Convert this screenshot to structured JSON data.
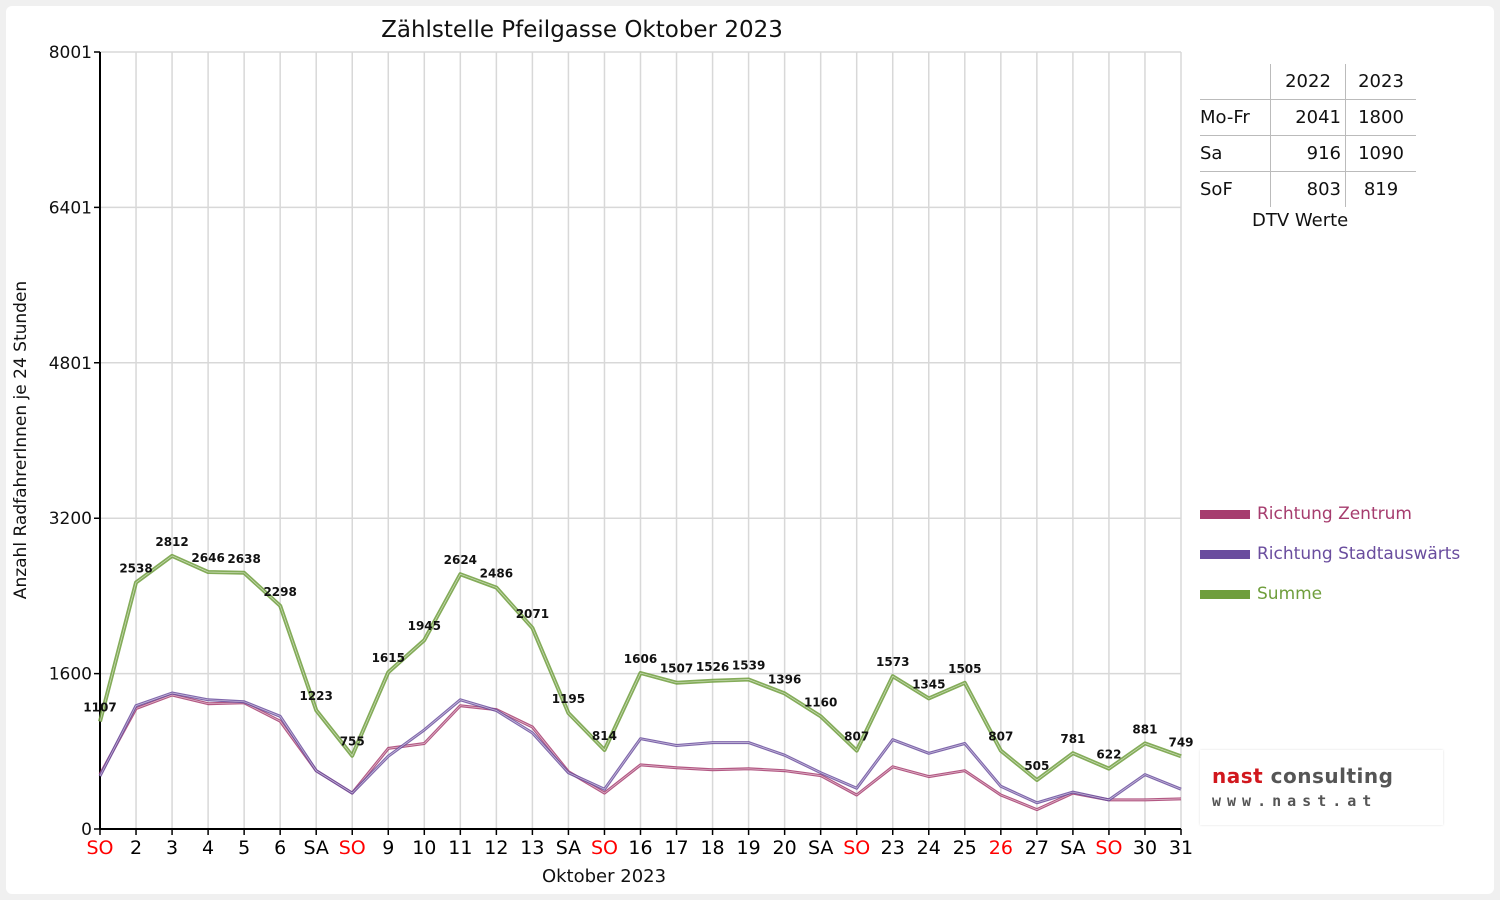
{
  "chart_data": {
    "type": "line",
    "title": "Zählstelle Pfeilgasse Oktober 2023",
    "xlabel": "Oktober 2023",
    "ylabel": "Anzahl RadfahrerInnen je 24 Stunden",
    "ylim": [
      0,
      8001
    ],
    "yticks": [
      "0",
      "1600",
      "3200",
      "4801",
      "6401",
      "8001"
    ],
    "ytick_values": [
      0,
      1600,
      3200,
      4801,
      6401,
      8001
    ],
    "categories": [
      "SO",
      "2",
      "3",
      "4",
      "5",
      "6",
      "SA",
      "SO",
      "9",
      "10",
      "11",
      "12",
      "13",
      "SA",
      "SO",
      "16",
      "17",
      "18",
      "19",
      "20",
      "SA",
      "SO",
      "23",
      "24",
      "25",
      "26",
      "27",
      "SA",
      "SO",
      "30",
      "31"
    ],
    "category_colors": [
      "#ff0000",
      "#000000",
      "#000000",
      "#000000",
      "#000000",
      "#000000",
      "#000000",
      "#ff0000",
      "#000000",
      "#000000",
      "#000000",
      "#000000",
      "#000000",
      "#000000",
      "#ff0000",
      "#000000",
      "#000000",
      "#000000",
      "#000000",
      "#000000",
      "#000000",
      "#ff0000",
      "#000000",
      "#000000",
      "#000000",
      "#ff0000",
      "#000000",
      "#000000",
      "#ff0000",
      "#000000",
      "#000000"
    ],
    "grid": true,
    "legend_position": "right",
    "series": [
      {
        "name": "Richtung Zentrum",
        "color": "#a63c6e",
        "values": [
          560,
          1240,
          1380,
          1290,
          1300,
          1110,
          600,
          370,
          830,
          880,
          1270,
          1230,
          1050,
          590,
          370,
          660,
          630,
          610,
          620,
          600,
          550,
          350,
          640,
          540,
          600,
          350,
          200,
          370,
          300,
          300,
          310
        ]
      },
      {
        "name": "Richtung Stadtauswärts",
        "color": "#6a4d9e",
        "values": [
          545,
          1270,
          1400,
          1330,
          1310,
          1160,
          600,
          370,
          750,
          1020,
          1330,
          1220,
          990,
          580,
          410,
          930,
          860,
          890,
          890,
          760,
          580,
          420,
          920,
          780,
          880,
          440,
          270,
          380,
          300,
          560,
          410
        ]
      },
      {
        "name": "Summe",
        "color": "#6f9e3c",
        "values": [
          1107,
          2538,
          2812,
          2646,
          2638,
          2298,
          1223,
          755,
          1615,
          1945,
          2624,
          2486,
          2071,
          1195,
          814,
          1606,
          1507,
          1526,
          1539,
          1396,
          1160,
          807,
          1573,
          1345,
          1505,
          807,
          505,
          781,
          622,
          881,
          749
        ]
      }
    ],
    "data_labels": [
      "1107",
      "2538",
      "2812",
      "2646",
      "2638",
      "2298",
      "1223",
      "755",
      "1615",
      "1945",
      "2624",
      "2486",
      "2071",
      "1195",
      "814",
      "1606",
      "1507",
      "1526",
      "1539",
      "1396",
      "1160",
      "807",
      "1573",
      "1345",
      "1505",
      "807",
      "505",
      "781",
      "622",
      "881",
      "749"
    ]
  },
  "dtv": {
    "headers": [
      "",
      "2022",
      "2023"
    ],
    "rows": [
      {
        "label": "Mo-Fr",
        "v2022": "2041",
        "v2023": "1800"
      },
      {
        "label": "Sa",
        "v2022": "916",
        "v2023": "1090"
      },
      {
        "label": "SoF",
        "v2022": "803",
        "v2023": "819"
      }
    ],
    "caption": "DTV Werte"
  },
  "legend": [
    {
      "label": "Richtung Zentrum",
      "color": "#a63c6e"
    },
    {
      "label": "Richtung Stadtauswärts",
      "color": "#6a4d9e"
    },
    {
      "label": "Summe",
      "color": "#6f9e3c"
    }
  ],
  "logo": {
    "word1": "nast",
    "word2": " consulting",
    "url": "www.nast.at"
  }
}
